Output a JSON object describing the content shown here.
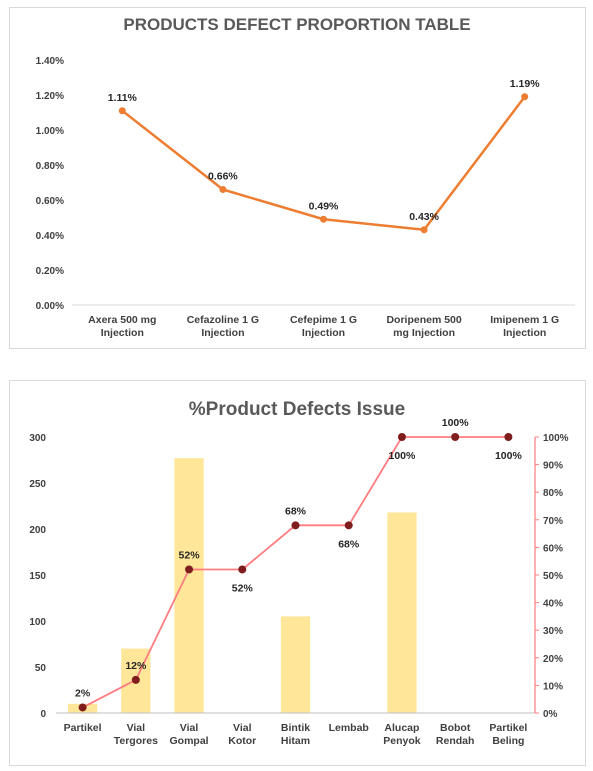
{
  "chart_data": [
    {
      "type": "line",
      "title": "PRODUCTS DEFECT PROPORTION TABLE",
      "categories": [
        [
          "Axera 500 mg",
          "Injection"
        ],
        [
          "Cefazoline 1 G",
          "Injection"
        ],
        [
          "Cefepime 1 G",
          "Injection"
        ],
        [
          "Doripenem 500",
          "mg Injection"
        ],
        [
          "Imipenem 1 G",
          "Injection"
        ]
      ],
      "values": [
        1.11,
        0.66,
        0.49,
        0.43,
        1.19
      ],
      "data_labels": [
        "1.11%",
        "0.66%",
        "0.49%",
        "0.43%",
        "1.19%"
      ],
      "yticks": [
        "0.00%",
        "0.20%",
        "0.40%",
        "0.60%",
        "0.80%",
        "1.00%",
        "1.20%",
        "1.40%"
      ],
      "ylim": [
        0,
        1.4
      ],
      "grid": false,
      "colors": {
        "line": "#ed7d31",
        "marker": "#ed7d31"
      }
    },
    {
      "type": "bar",
      "title": "%Product Defects Issue",
      "categories": [
        [
          "Partikel"
        ],
        [
          "Vial",
          "Tergores"
        ],
        [
          "Vial",
          "Gompal"
        ],
        [
          "Vial",
          "Kotor"
        ],
        [
          "Bintik",
          "Hitam"
        ],
        [
          "Lembab"
        ],
        [
          "Alucap",
          "Penyok"
        ],
        [
          "Bobot",
          "Rendah"
        ],
        [
          "Partikel",
          "Beling"
        ]
      ],
      "series": [
        {
          "type": "bar",
          "axis": "left",
          "values": [
            10,
            70,
            277,
            0,
            105,
            0,
            218,
            0,
            0
          ]
        },
        {
          "type": "line",
          "axis": "right",
          "values": [
            2,
            12,
            52,
            52,
            68,
            68,
            100,
            100,
            100
          ]
        }
      ],
      "data_labels": [
        "2%",
        "12%",
        "52%",
        "52%",
        "68%",
        "68%",
        "100%",
        "100%",
        "100%"
      ],
      "label_above": [
        true,
        true,
        true,
        false,
        true,
        false,
        false,
        true,
        false
      ],
      "yticks_left": [
        "0",
        "50",
        "100",
        "150",
        "200",
        "250",
        "300"
      ],
      "ylim_left": [
        0,
        300
      ],
      "yticks_right": [
        "0%",
        "10%",
        "20%",
        "30%",
        "40%",
        "50%",
        "60%",
        "70%",
        "80%",
        "90%",
        "100%"
      ],
      "ylim_right": [
        0,
        100
      ],
      "grid": false,
      "colors": {
        "bar": "#ffe699",
        "line": "#ff7c80",
        "marker": "#7f1d1d",
        "right_axis": "#ff7c80"
      }
    }
  ]
}
